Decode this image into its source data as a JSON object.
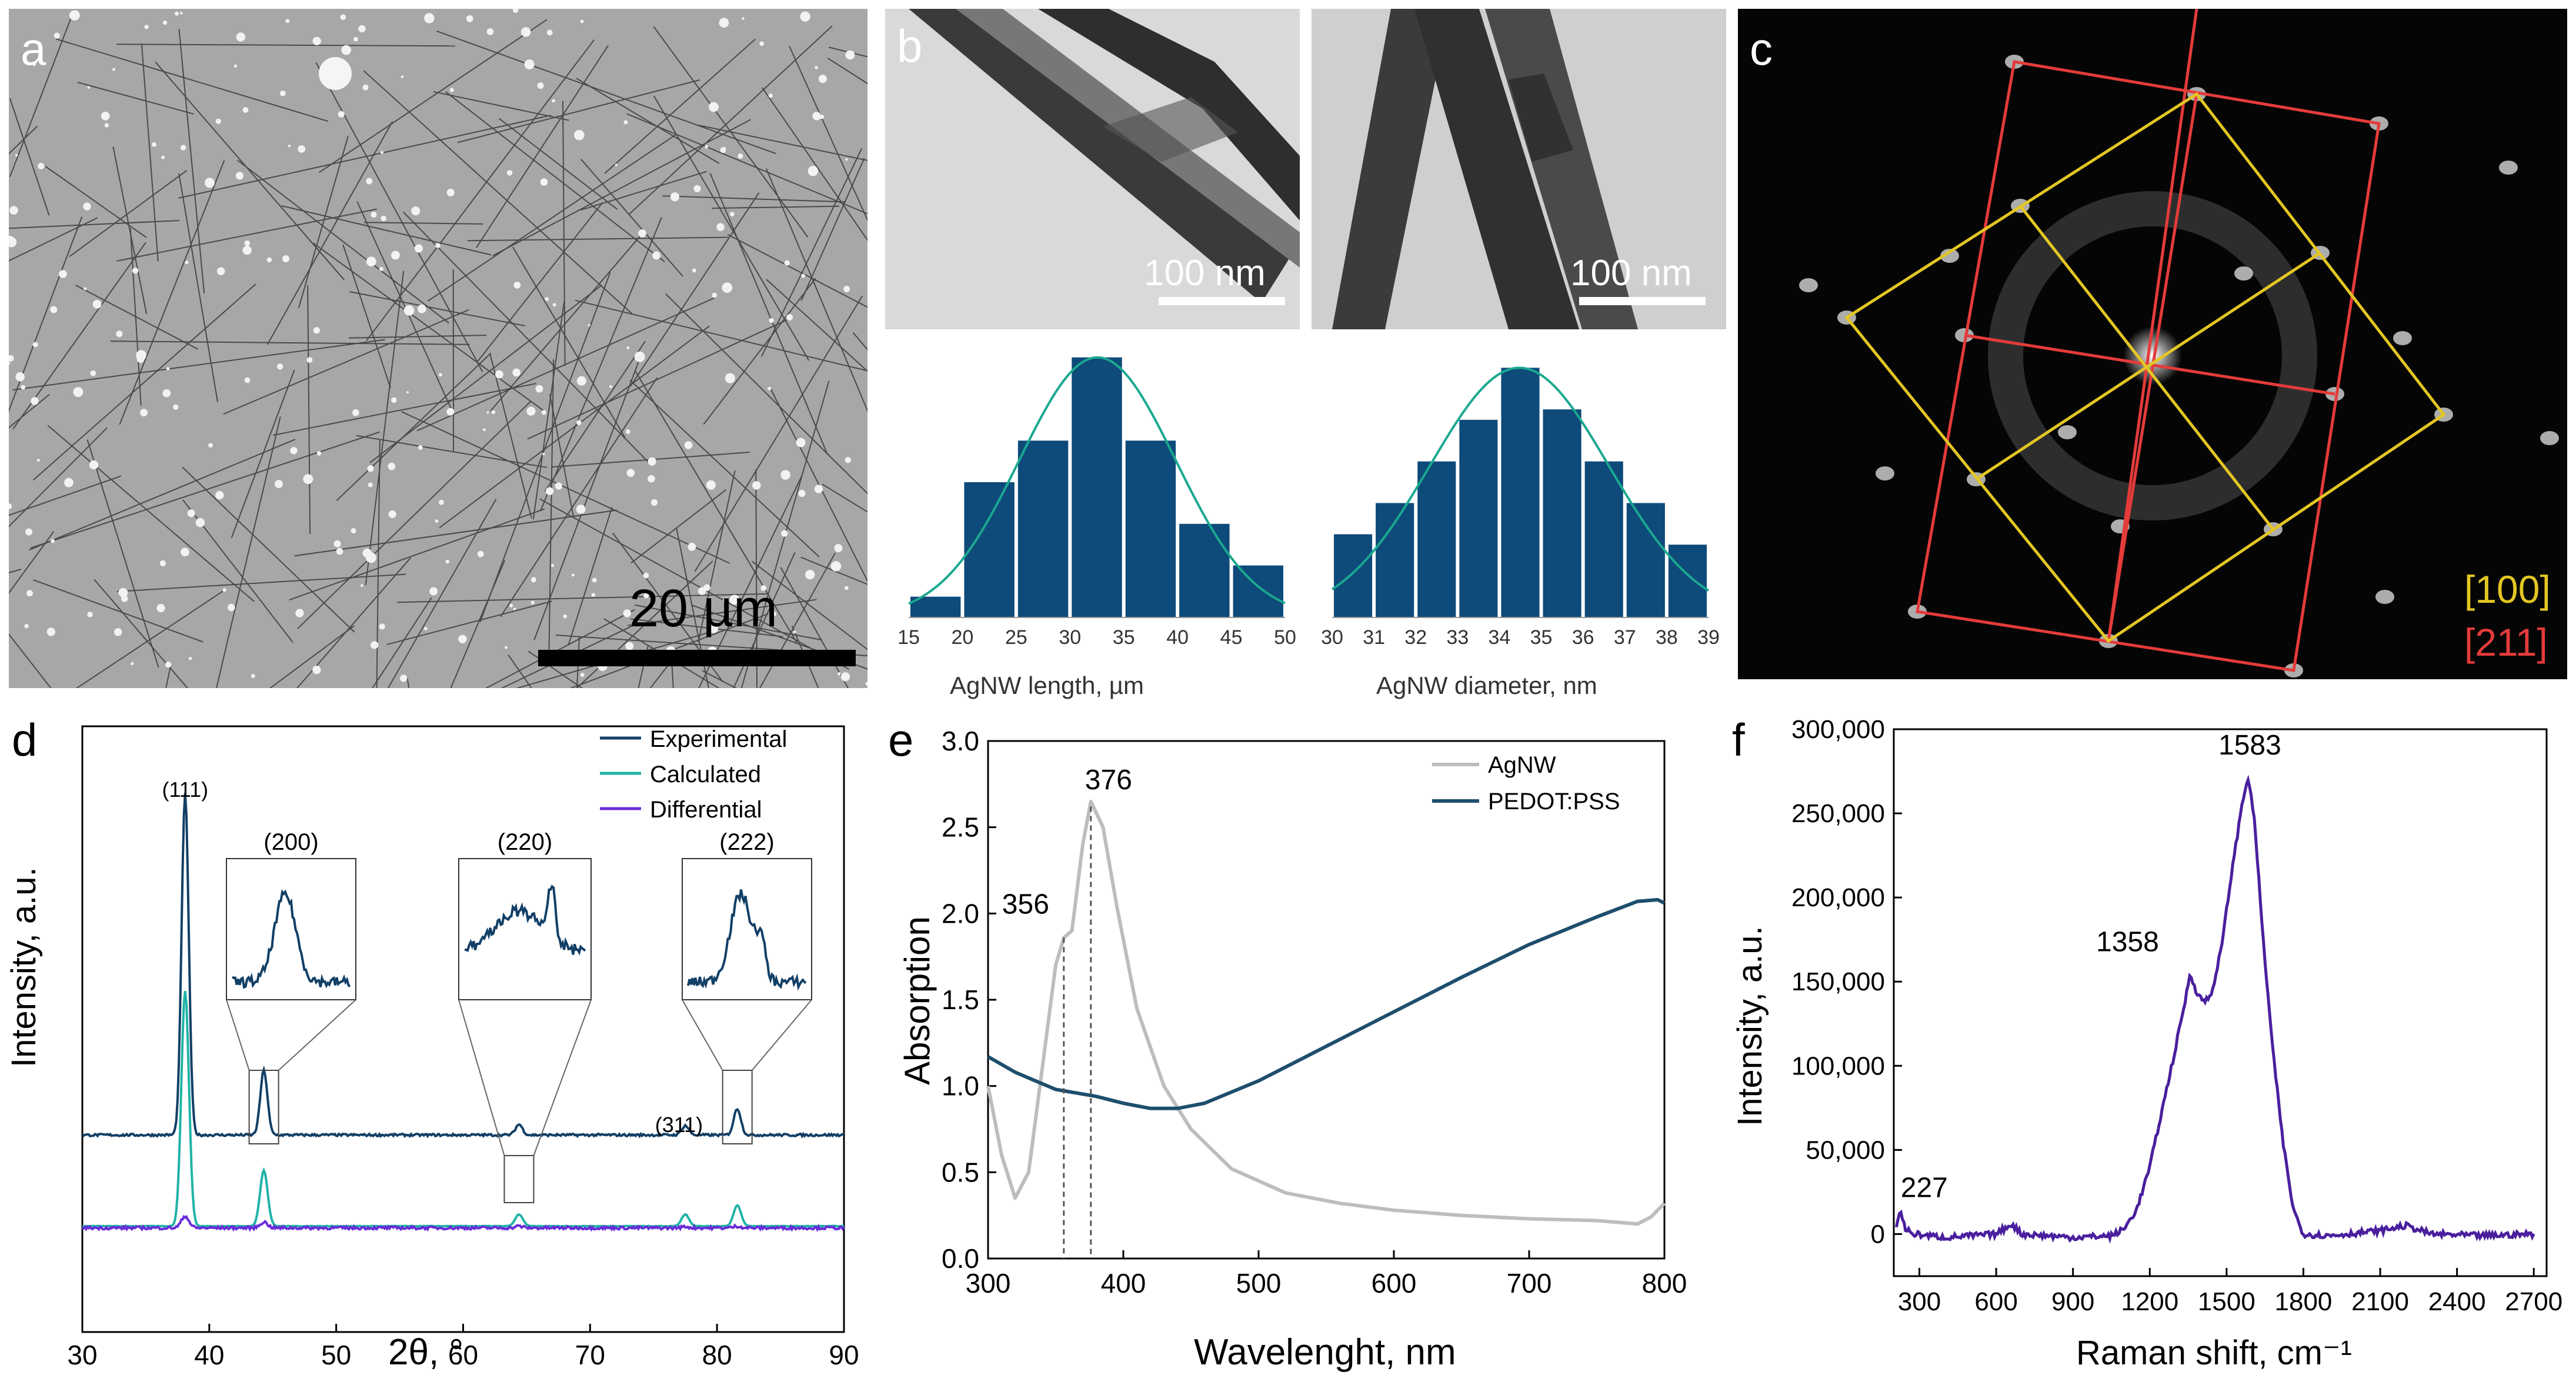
{
  "figure": {
    "a": {
      "letter": "a",
      "scale_bar": "20 µm"
    },
    "b": {
      "letter": "b",
      "scale_bar_left": "100 nm",
      "scale_bar_right": "100 nm"
    },
    "c": {
      "letter": "c",
      "legend_yellow": "[100]",
      "legend_red": "[211]"
    },
    "d": {
      "letter": "d"
    },
    "e": {
      "letter": "e"
    },
    "f": {
      "letter": "f"
    }
  },
  "chart_data": [
    {
      "id": "b-length-hist",
      "type": "bar",
      "xlabel": "AgNW length, µm",
      "ylabel": "",
      "bins": [
        [
          15,
          20
        ],
        [
          20,
          25
        ],
        [
          25,
          30
        ],
        [
          30,
          35
        ],
        [
          35,
          40
        ],
        [
          40,
          45
        ],
        [
          45,
          50
        ]
      ],
      "values": [
        2,
        13,
        17,
        25,
        17,
        9,
        5
      ],
      "fit": "gaussian",
      "xlim": [
        15,
        50
      ],
      "ticks": [
        "15",
        "20",
        "25",
        "30",
        "35",
        "40",
        "45",
        "50"
      ]
    },
    {
      "id": "b-diameter-hist",
      "type": "bar",
      "xlabel": "AgNW diameter, nm",
      "ylabel": "",
      "bins": [
        [
          30,
          31
        ],
        [
          31,
          32
        ],
        [
          32,
          33
        ],
        [
          33,
          34
        ],
        [
          34,
          35
        ],
        [
          35,
          36
        ],
        [
          36,
          37
        ],
        [
          37,
          38
        ],
        [
          38,
          39
        ]
      ],
      "values": [
        8,
        11,
        15,
        19,
        24,
        20,
        15,
        11,
        7
      ],
      "fit": "gaussian",
      "xlim": [
        30,
        39
      ],
      "ticks": [
        "30",
        "31",
        "32",
        "33",
        "34",
        "35",
        "36",
        "37",
        "38",
        "39"
      ]
    },
    {
      "id": "d-xrd",
      "type": "line",
      "xlabel": "2θ, °",
      "ylabel": "Intensity, a.u.",
      "xlim": [
        30,
        90
      ],
      "ticks": [
        "30",
        "40",
        "50",
        "60",
        "70",
        "80",
        "90"
      ],
      "legend": [
        "Experimental",
        "Calculated",
        "Differential"
      ],
      "colors": [
        "#123f66",
        "#1fb3a6",
        "#6a2bd8"
      ],
      "peaks": [
        {
          "label": "(111)",
          "x": 38.1
        },
        {
          "label": "(200)",
          "x": 44.3
        },
        {
          "label": "(220)",
          "x": 64.4
        },
        {
          "label": "(311)",
          "x": 77.5
        },
        {
          "label": "(222)",
          "x": 81.6
        }
      ],
      "inset_labels": [
        "(200)",
        "(220)",
        "(222)"
      ],
      "annotation": "(311)"
    },
    {
      "id": "e-absorption",
      "type": "line",
      "xlabel": "Wavelenght, nm",
      "ylabel": "Absorption",
      "xlim": [
        300,
        800
      ],
      "ylim": [
        0,
        3.0
      ],
      "xticks": [
        "300",
        "400",
        "500",
        "600",
        "700",
        "800"
      ],
      "yticks": [
        "0.0",
        "0.5",
        "1.0",
        "1.5",
        "2.0",
        "2.5",
        "3.0"
      ],
      "legend": [
        "AgNW",
        "PEDOT:PSS"
      ],
      "series": [
        {
          "name": "AgNW",
          "color": "#bdbdbd",
          "x": [
            300,
            310,
            320,
            330,
            340,
            350,
            356,
            362,
            370,
            376,
            385,
            395,
            410,
            430,
            450,
            480,
            520,
            560,
            600,
            650,
            700,
            750,
            780,
            790,
            800
          ],
          "y": [
            1.0,
            0.6,
            0.35,
            0.5,
            1.1,
            1.7,
            1.86,
            1.9,
            2.4,
            2.65,
            2.5,
            2.05,
            1.45,
            1.0,
            0.75,
            0.52,
            0.38,
            0.32,
            0.28,
            0.25,
            0.23,
            0.22,
            0.2,
            0.24,
            0.32
          ]
        },
        {
          "name": "PEDOT:PSS",
          "color": "#1d4e6d",
          "x": [
            300,
            320,
            350,
            380,
            400,
            420,
            440,
            460,
            500,
            550,
            600,
            650,
            700,
            750,
            780,
            795,
            800
          ],
          "y": [
            1.17,
            1.08,
            0.98,
            0.94,
            0.9,
            0.87,
            0.87,
            0.9,
            1.03,
            1.23,
            1.43,
            1.63,
            1.82,
            1.98,
            2.07,
            2.08,
            2.06
          ]
        }
      ],
      "peak_labels": [
        {
          "label": "356",
          "x": 356
        },
        {
          "label": "376",
          "x": 376
        }
      ]
    },
    {
      "id": "f-raman",
      "type": "line",
      "xlabel": "Raman shift, cm⁻¹",
      "ylabel": "Intensity, a.u.",
      "xlim": [
        200,
        2750
      ],
      "ylim": [
        -25000,
        300000
      ],
      "xticks": [
        "300",
        "600",
        "900",
        "1200",
        "1500",
        "1800",
        "2100",
        "2400",
        "2700"
      ],
      "yticks": [
        "0",
        "50,000",
        "100,000",
        "150,000",
        "200,000",
        "250,000",
        "300,000"
      ],
      "color": "#4a1f9e",
      "x": [
        210,
        227,
        245,
        280,
        400,
        600,
        660,
        700,
        900,
        1050,
        1100,
        1150,
        1200,
        1250,
        1300,
        1340,
        1358,
        1380,
        1410,
        1440,
        1480,
        1520,
        1560,
        1583,
        1610,
        1640,
        1680,
        1720,
        1760,
        1800,
        1900,
        2100,
        2200,
        2300,
        2500,
        2700
      ],
      "y": [
        5000,
        14000,
        3000,
        0,
        -2000,
        0,
        6000,
        0,
        -2000,
        -1000,
        3000,
        15000,
        40000,
        75000,
        110000,
        140000,
        155000,
        145000,
        138000,
        142000,
        170000,
        215000,
        255000,
        272000,
        245000,
        180000,
        110000,
        55000,
        15000,
        0,
        -1000,
        2000,
        5000,
        0,
        -1000,
        0
      ],
      "peak_labels": [
        {
          "label": "227",
          "x": 227
        },
        {
          "label": "1358",
          "x": 1358
        },
        {
          "label": "1583",
          "x": 1583
        }
      ]
    }
  ]
}
